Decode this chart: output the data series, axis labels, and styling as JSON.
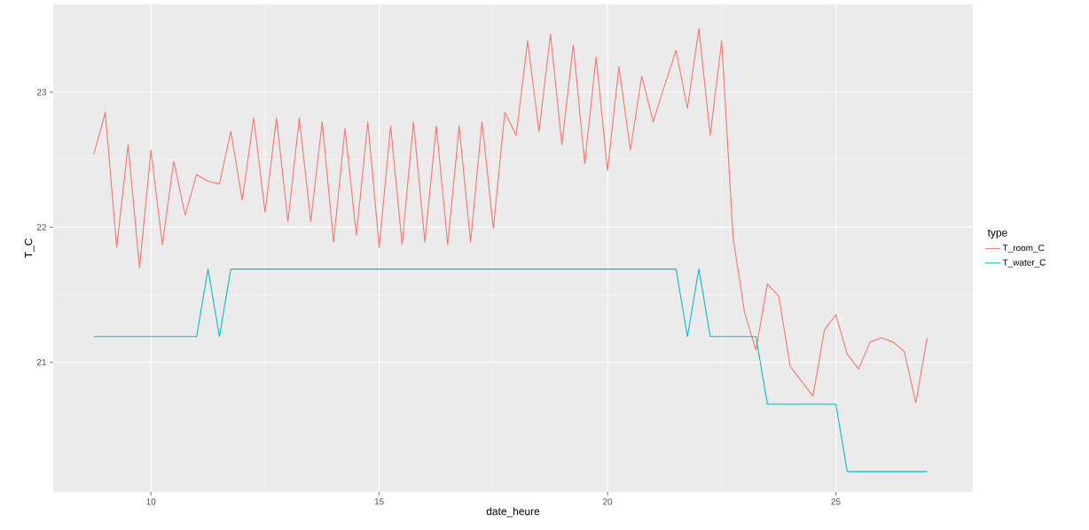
{
  "chart_data": {
    "type": "line",
    "xlabel": "date_heure",
    "ylabel": "T_C",
    "legend_title": "type",
    "x": [
      8.75,
      9.0,
      9.25,
      9.5,
      9.75,
      10.0,
      10.25,
      10.5,
      10.75,
      11.0,
      11.25,
      11.5,
      11.75,
      12.0,
      12.25,
      12.5,
      12.75,
      13.0,
      13.25,
      13.5,
      13.75,
      14.0,
      14.25,
      14.5,
      14.75,
      15.0,
      15.25,
      15.5,
      15.75,
      16.0,
      16.25,
      16.5,
      16.75,
      17.0,
      17.25,
      17.5,
      17.75,
      18.0,
      18.25,
      18.5,
      18.75,
      19.0,
      19.25,
      19.5,
      19.75,
      20.0,
      20.25,
      20.5,
      20.75,
      21.0,
      21.25,
      21.5,
      21.75,
      22.0,
      22.25,
      22.5,
      22.75,
      23.0,
      23.25,
      23.5,
      23.75,
      24.0,
      24.25,
      24.5,
      24.75,
      25.0,
      25.25,
      25.5,
      25.75,
      26.0,
      26.25,
      26.5,
      26.75,
      27.0
    ],
    "series": [
      {
        "name": "T_room_C",
        "color": "#f8766d",
        "values": [
          22.54,
          22.85,
          21.85,
          22.61,
          21.7,
          22.57,
          21.87,
          22.49,
          22.09,
          22.39,
          22.34,
          22.32,
          22.71,
          22.2,
          22.81,
          22.11,
          22.81,
          22.04,
          22.81,
          22.04,
          22.78,
          21.89,
          22.73,
          21.94,
          22.78,
          21.85,
          22.75,
          21.87,
          22.78,
          21.89,
          22.75,
          21.87,
          22.75,
          21.89,
          22.78,
          21.99,
          22.85,
          22.68,
          23.38,
          22.71,
          23.43,
          22.61,
          23.35,
          22.47,
          23.26,
          22.42,
          23.19,
          22.57,
          23.12,
          22.78,
          23.05,
          23.31,
          22.88,
          23.47,
          22.68,
          23.38,
          21.92,
          21.37,
          21.09,
          21.58,
          21.49,
          20.97,
          20.86,
          20.75,
          21.24,
          21.35,
          21.06,
          20.95,
          21.15,
          21.18,
          21.15,
          21.08,
          20.7,
          21.18
        ]
      },
      {
        "name": "T_water_C",
        "color": "#00bfc4",
        "values": [
          21.19,
          21.19,
          21.19,
          21.19,
          21.19,
          21.19,
          21.19,
          21.19,
          21.19,
          21.19,
          21.69,
          21.19,
          21.69,
          21.69,
          21.69,
          21.69,
          21.69,
          21.69,
          21.69,
          21.69,
          21.69,
          21.69,
          21.69,
          21.69,
          21.69,
          21.69,
          21.69,
          21.69,
          21.69,
          21.69,
          21.69,
          21.69,
          21.69,
          21.69,
          21.69,
          21.69,
          21.69,
          21.69,
          21.69,
          21.69,
          21.69,
          21.69,
          21.69,
          21.69,
          21.69,
          21.69,
          21.69,
          21.69,
          21.69,
          21.69,
          21.69,
          21.69,
          21.19,
          21.69,
          21.19,
          21.19,
          21.19,
          21.19,
          21.19,
          20.69,
          20.69,
          20.69,
          20.69,
          20.69,
          20.69,
          20.69,
          20.19,
          20.19,
          20.19,
          20.19,
          20.19,
          20.19,
          20.19,
          20.19
        ]
      }
    ],
    "xlim": [
      7.86,
      28.0
    ],
    "ylim": [
      20.04,
      23.65
    ],
    "xticks": [
      10,
      15,
      20,
      25
    ],
    "yticks": [
      21,
      22,
      23
    ],
    "grid": true,
    "legend": "right",
    "marker": "none",
    "line_style": "solid"
  }
}
